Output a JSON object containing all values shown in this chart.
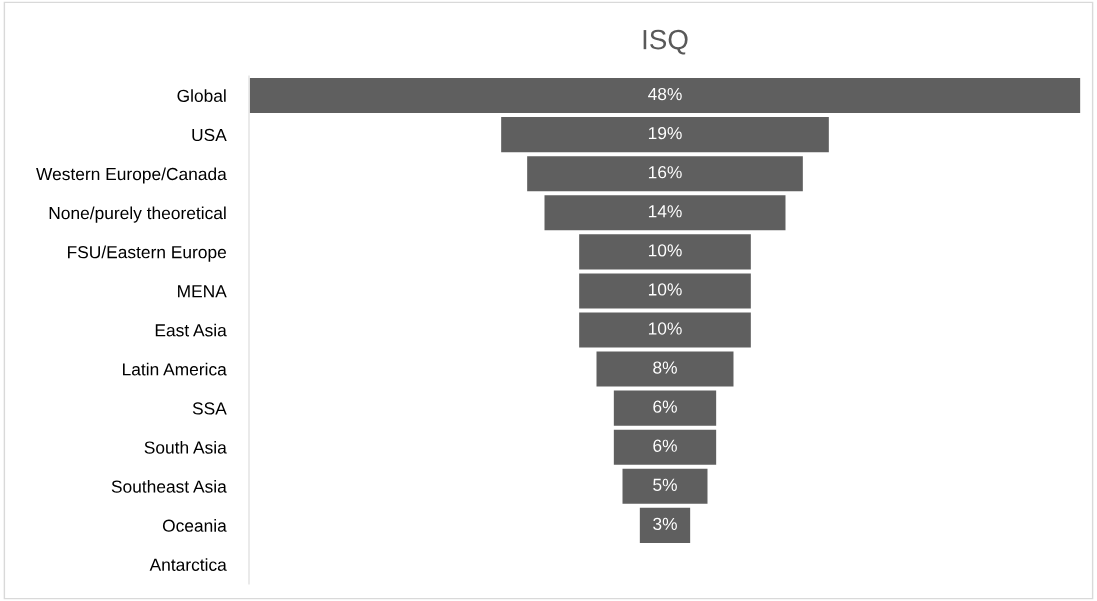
{
  "chart_data": {
    "type": "other",
    "title": "ISQ",
    "categories": [
      "Global",
      "USA",
      "Western Europe/Canada",
      "None/purely theoretical",
      "FSU/Eastern Europe",
      "MENA",
      "East Asia",
      "Latin America",
      "SSA",
      "South Asia",
      "Southeast Asia",
      "Oceania",
      "Antarctica"
    ],
    "values": [
      48,
      19,
      16,
      14,
      10,
      10,
      10,
      8,
      6,
      6,
      5,
      3,
      null
    ],
    "value_labels": [
      "48%",
      "19%",
      "16%",
      "14%",
      "10%",
      "10%",
      "10%",
      "8%",
      "6%",
      "6%",
      "5%",
      "3%",
      null
    ],
    "color": "#5f5f5f"
  }
}
